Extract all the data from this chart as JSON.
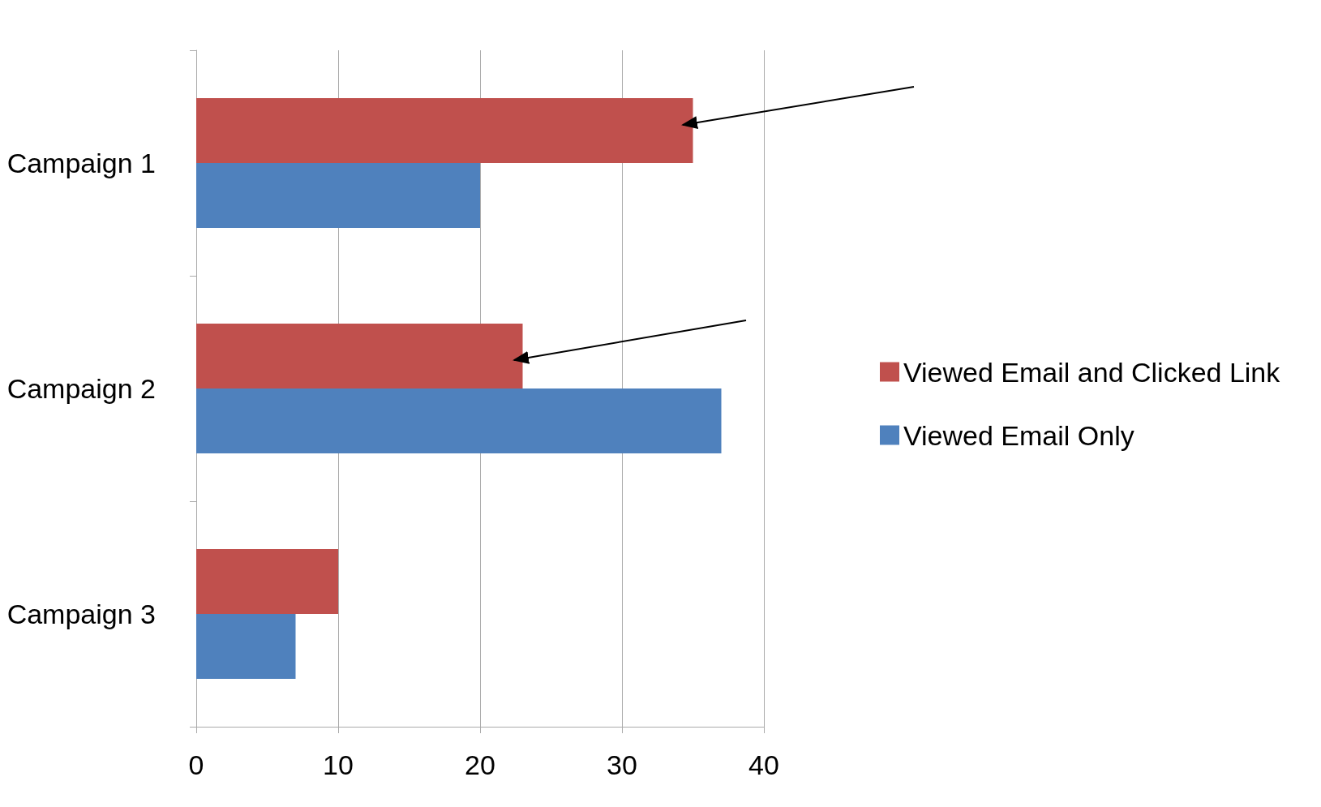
{
  "chart_data": {
    "type": "bar",
    "orientation": "horizontal",
    "categories": [
      "Campaign 1",
      "Campaign 2",
      "Campaign 3"
    ],
    "series": [
      {
        "name": "Viewed Email and Clicked Link",
        "color": "#c0504d",
        "values": [
          35,
          23,
          10
        ]
      },
      {
        "name": "Viewed Email Only",
        "color": "#4f81bd",
        "values": [
          20,
          37,
          7
        ]
      }
    ],
    "xlim": [
      0,
      40
    ],
    "xticks": [
      0,
      10,
      20,
      30,
      40
    ],
    "grid": "x",
    "legend": "right"
  }
}
